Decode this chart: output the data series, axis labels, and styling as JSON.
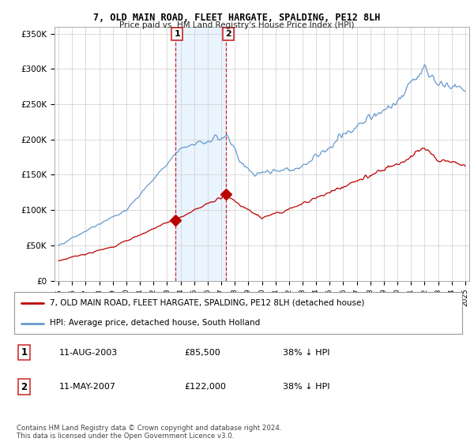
{
  "title": "7, OLD MAIN ROAD, FLEET HARGATE, SPALDING, PE12 8LH",
  "subtitle": "Price paid vs. HM Land Registry's House Price Index (HPI)",
  "legend_line1": "7, OLD MAIN ROAD, FLEET HARGATE, SPALDING, PE12 8LH (detached house)",
  "legend_line2": "HPI: Average price, detached house, South Holland",
  "annotation1_label": "1",
  "annotation1_date": "11-AUG-2003",
  "annotation1_price": "£85,500",
  "annotation1_hpi": "38% ↓ HPI",
  "annotation2_label": "2",
  "annotation2_date": "11-MAY-2007",
  "annotation2_price": "£122,000",
  "annotation2_hpi": "38% ↓ HPI",
  "footer": "Contains HM Land Registry data © Crown copyright and database right 2024.\nThis data is licensed under the Open Government Licence v3.0.",
  "ylim": [
    0,
    360000
  ],
  "xlim": [
    1994.7,
    2025.3
  ],
  "sale1_x": 2003.6,
  "sale1_y": 85500,
  "sale2_x": 2007.36,
  "sale2_y": 122000,
  "red_color": "#bb0000",
  "blue_color": "#6699cc",
  "shade_color": "#ddeeff",
  "vline_color": "#cc0000",
  "background_color": "#ffffff",
  "grid_color": "#cccccc"
}
